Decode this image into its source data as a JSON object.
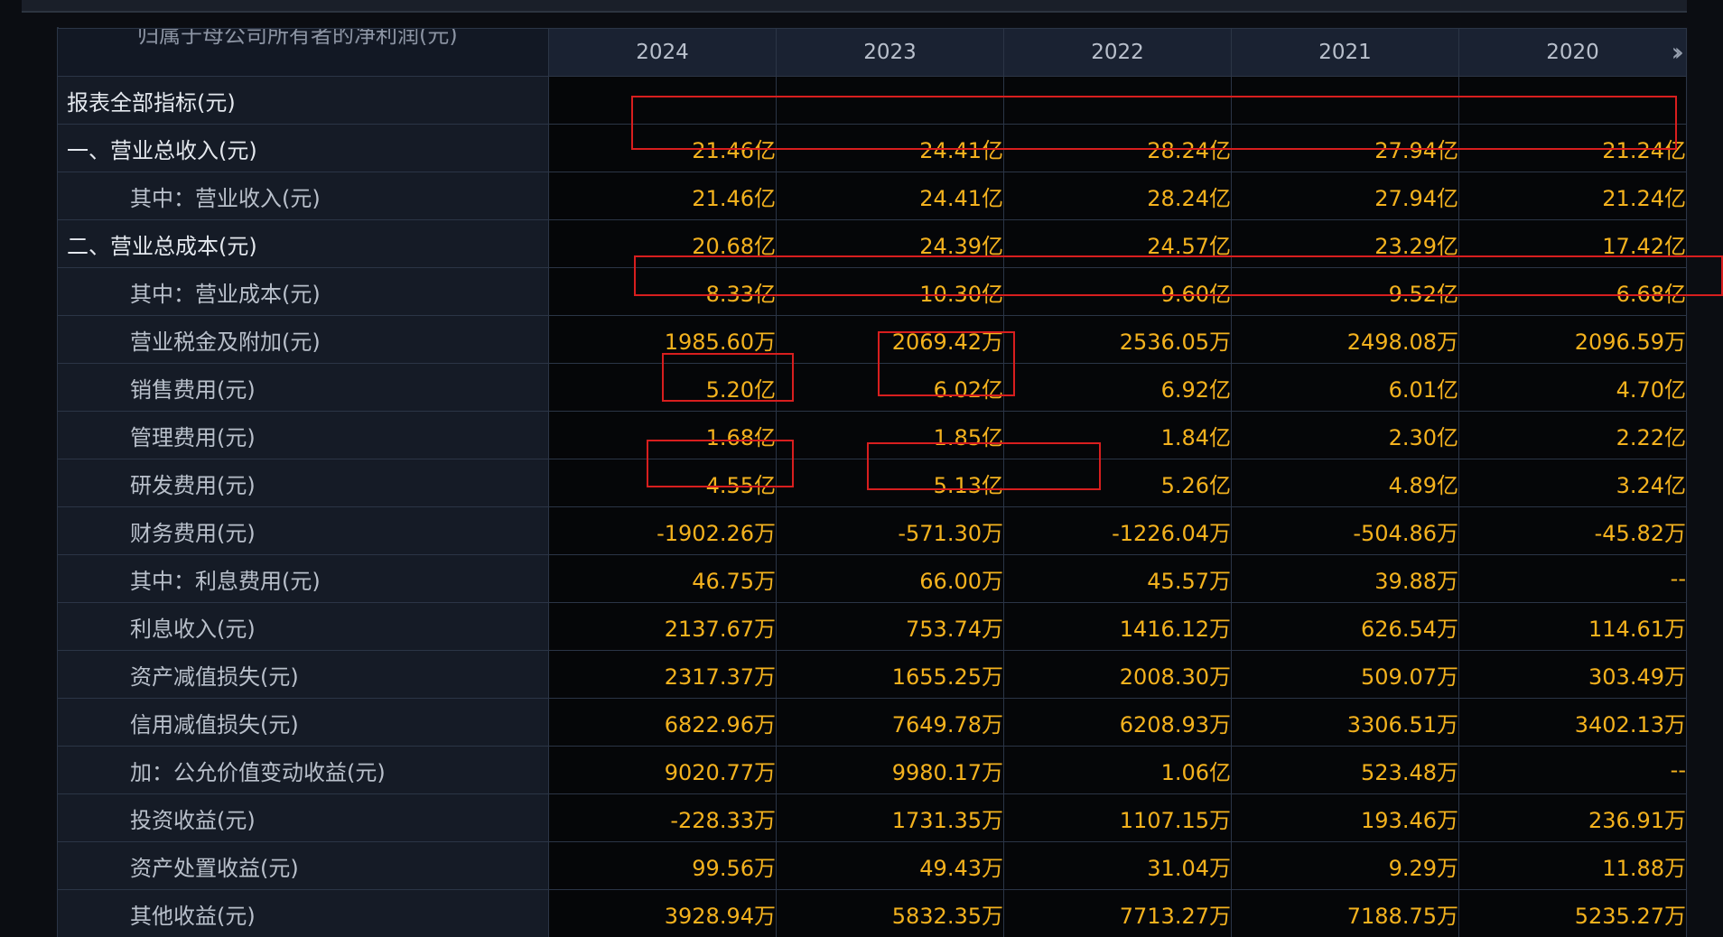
{
  "table": {
    "truncated_header": "归属于母公司所有者的净利润(元)",
    "section_label": "报表全部指标(元)",
    "years": [
      "2024",
      "2023",
      "2022",
      "2021",
      "2020"
    ],
    "more_icon": "double-chevron-right-icon",
    "rows": [
      {
        "label": "一、营业总收入(元)",
        "level": 0,
        "values": [
          "21.46亿",
          "24.41亿",
          "28.24亿",
          "27.94亿",
          "21.24亿"
        ]
      },
      {
        "label": "其中：营业收入(元)",
        "level": 1,
        "values": [
          "21.46亿",
          "24.41亿",
          "28.24亿",
          "27.94亿",
          "21.24亿"
        ]
      },
      {
        "label": "二、营业总成本(元)",
        "level": 0,
        "values": [
          "20.68亿",
          "24.39亿",
          "24.57亿",
          "23.29亿",
          "17.42亿"
        ]
      },
      {
        "label": "其中：营业成本(元)",
        "level": 1,
        "values": [
          "8.33亿",
          "10.30亿",
          "9.60亿",
          "9.52亿",
          "6.68亿"
        ]
      },
      {
        "label": "营业税金及附加(元)",
        "level": 1,
        "values": [
          "1985.60万",
          "2069.42万",
          "2536.05万",
          "2498.08万",
          "2096.59万"
        ]
      },
      {
        "label": "销售费用(元)",
        "level": 1,
        "values": [
          "5.20亿",
          "6.02亿",
          "6.92亿",
          "6.01亿",
          "4.70亿"
        ]
      },
      {
        "label": "管理费用(元)",
        "level": 1,
        "values": [
          "1.68亿",
          "1.85亿",
          "1.84亿",
          "2.30亿",
          "2.22亿"
        ]
      },
      {
        "label": "研发费用(元)",
        "level": 1,
        "values": [
          "4.55亿",
          "5.13亿",
          "5.26亿",
          "4.89亿",
          "3.24亿"
        ]
      },
      {
        "label": "财务费用(元)",
        "level": 1,
        "values": [
          "-1902.26万",
          "-571.30万",
          "-1226.04万",
          "-504.86万",
          "-45.82万"
        ]
      },
      {
        "label": "其中：利息费用(元)",
        "level": 1,
        "values": [
          "46.75万",
          "66.00万",
          "45.57万",
          "39.88万",
          "--"
        ]
      },
      {
        "label": "利息收入(元)",
        "level": 1,
        "values": [
          "2137.67万",
          "753.74万",
          "1416.12万",
          "626.54万",
          "114.61万"
        ]
      },
      {
        "label": "资产减值损失(元)",
        "level": 1,
        "values": [
          "2317.37万",
          "1655.25万",
          "2008.30万",
          "509.07万",
          "303.49万"
        ]
      },
      {
        "label": "信用减值损失(元)",
        "level": 1,
        "values": [
          "6822.96万",
          "7649.78万",
          "6208.93万",
          "3306.51万",
          "3402.13万"
        ]
      },
      {
        "label": "加：公允价值变动收益(元)",
        "level": 1,
        "values": [
          "9020.77万",
          "9980.17万",
          "1.06亿",
          "523.48万",
          "--"
        ]
      },
      {
        "label": "投资收益(元)",
        "level": 1,
        "values": [
          "-228.33万",
          "1731.35万",
          "1107.15万",
          "193.46万",
          "236.91万"
        ]
      },
      {
        "label": "资产处置收益(元)",
        "level": 1,
        "values": [
          "99.56万",
          "49.43万",
          "31.04万",
          "9.29万",
          "11.88万"
        ]
      },
      {
        "label": "其他收益(元)",
        "level": 1,
        "values": [
          "3928.94万",
          "5832.35万",
          "7713.27万",
          "7188.75万",
          "5235.27万"
        ]
      }
    ]
  },
  "colors": {
    "value_text": "#f4b21e",
    "label_text": "#cdd2da",
    "highlight_box": "#d81e1e",
    "grid_line": "#2b3546"
  }
}
